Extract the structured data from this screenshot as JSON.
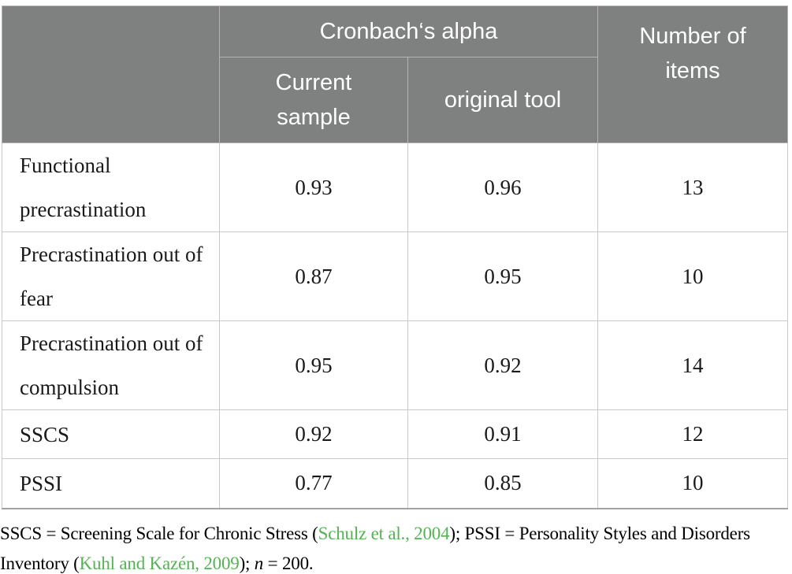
{
  "colors": {
    "header_bg": "#7f8080",
    "header_text": "#ffffff",
    "header_border": "#b4b4b4",
    "body_border": "#c9c9c9",
    "table_bottom_border": "#a2a2a2",
    "body_text": "#1a1a1a",
    "citation_green": "#54b354"
  },
  "table": {
    "header": {
      "alpha_group_label": "Cronbach‘s alpha",
      "current_sample_label": "Current sample",
      "original_tool_label": "original tool",
      "items_label": "Number of items"
    },
    "rows": [
      {
        "label": "Functional precrastination",
        "current_sample": "0.93",
        "original_tool": "0.96",
        "items": "13"
      },
      {
        "label": "Precrastination out of fear",
        "current_sample": "0.87",
        "original_tool": "0.95",
        "items": "10"
      },
      {
        "label": "Precrastination out of compulsion",
        "current_sample": "0.95",
        "original_tool": "0.92",
        "items": "14"
      },
      {
        "label": "SSCS",
        "current_sample": "0.92",
        "original_tool": "0.91",
        "items": "12"
      },
      {
        "label": "PSSI",
        "current_sample": "0.77",
        "original_tool": "0.85",
        "items": "10"
      }
    ]
  },
  "footnote": {
    "part1": "SSCS = Screening Scale for Chronic Stress (",
    "citation1": "Schulz et al., 2004",
    "part2": "); PSSI = Personality Styles and Disorders Inventory (",
    "citation2": "Kuhl and Kazén, 2009",
    "part3": "); ",
    "n_symbol": "n",
    "part4": " = 200."
  }
}
